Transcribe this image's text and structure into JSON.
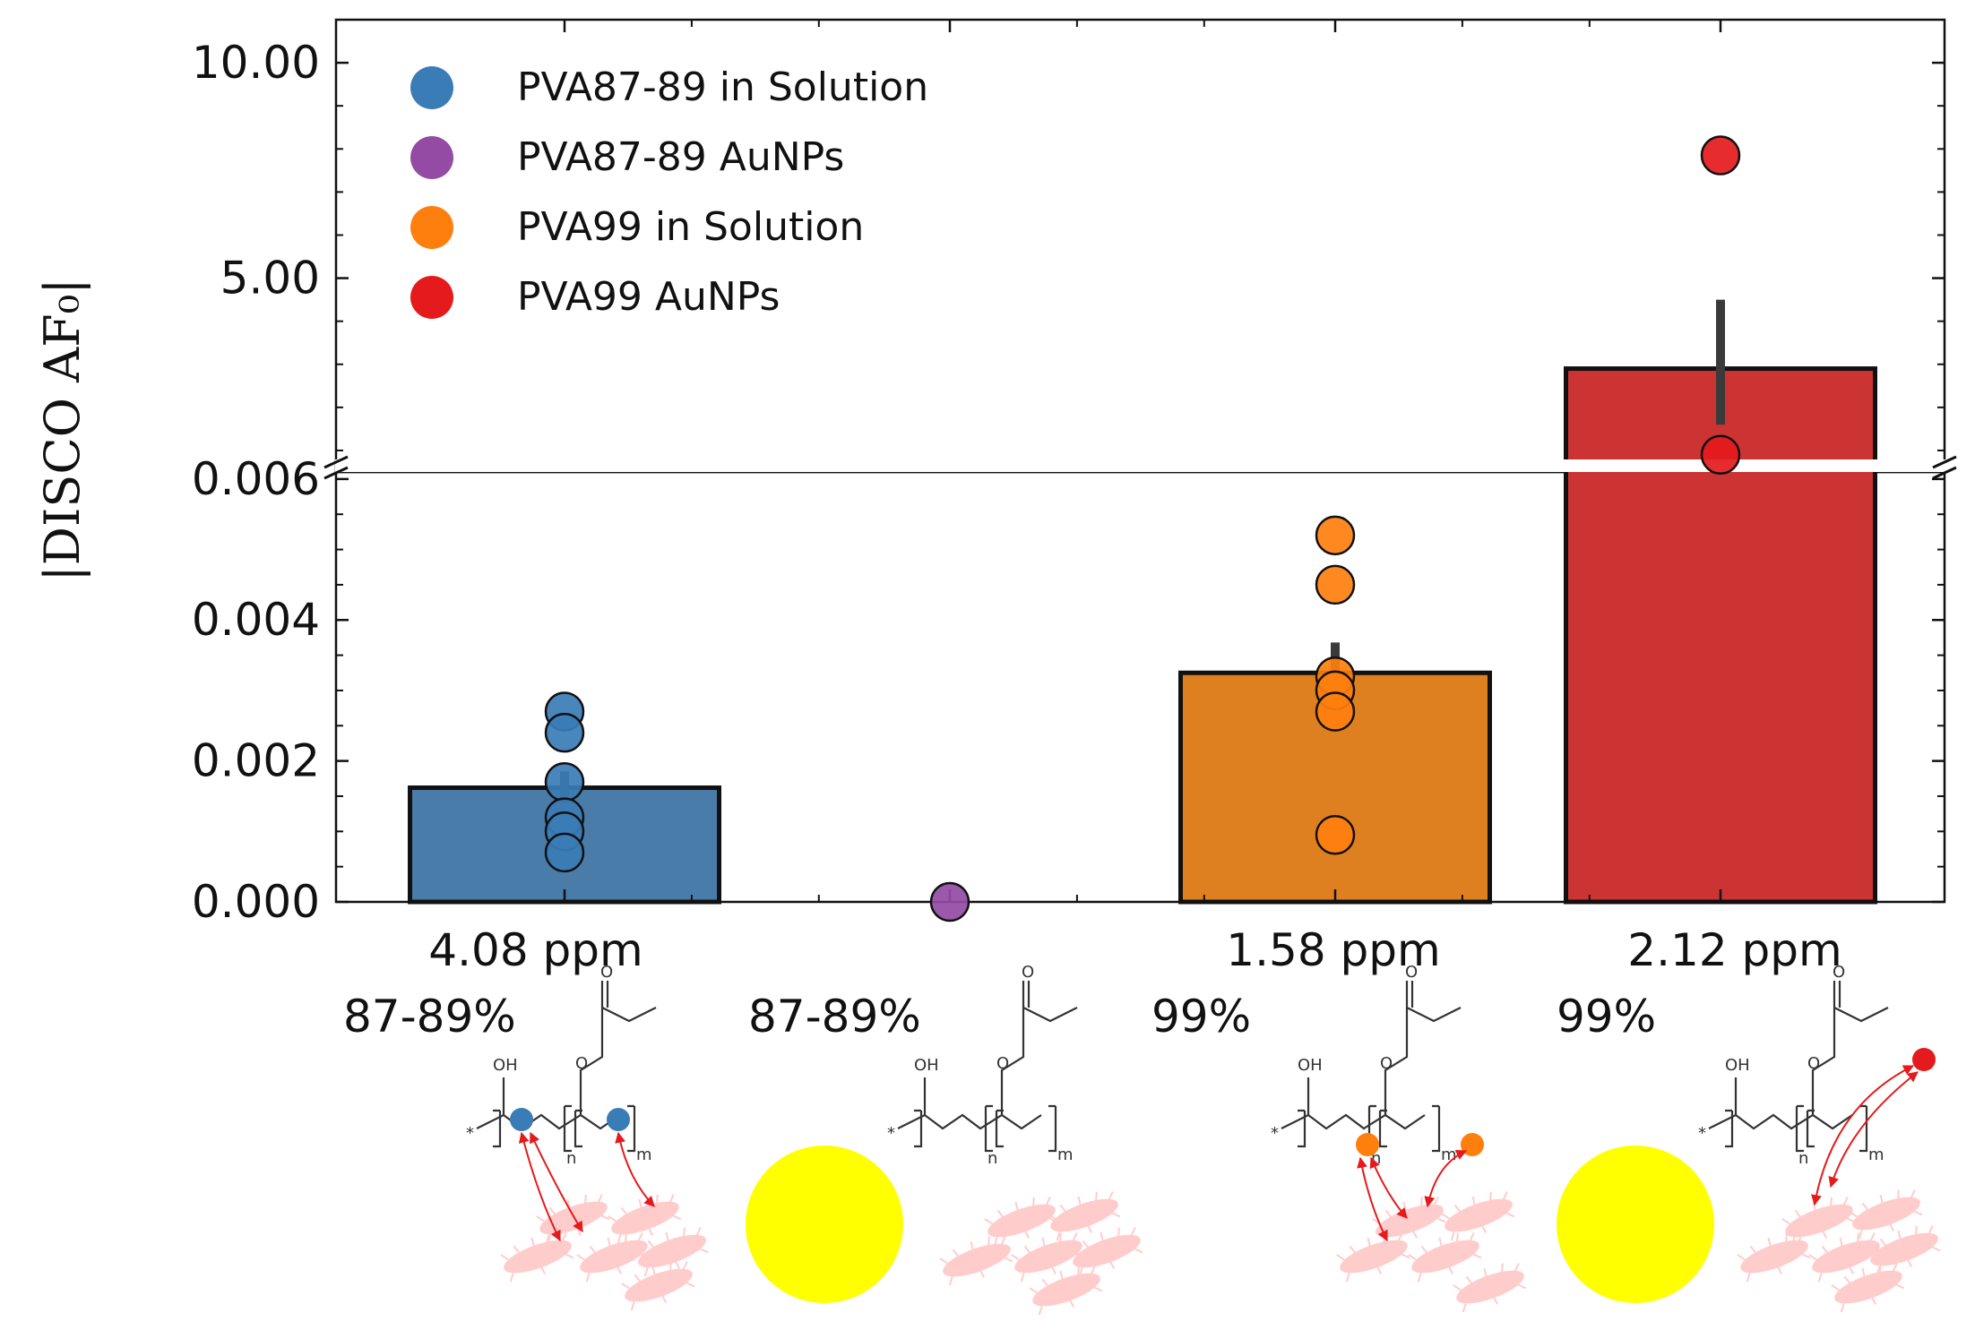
{
  "chart_data": {
    "type": "bar",
    "ylabel": "|DISCO AF₀|",
    "axis_break": true,
    "lower_axis": {
      "ylim": [
        0,
        0.0061
      ],
      "ticks": [
        "0.000",
        "0.002",
        "0.004",
        "0.006"
      ]
    },
    "upper_axis": {
      "ylim": [
        0.5,
        11
      ],
      "ticks": [
        "5.00",
        "10.00"
      ]
    },
    "categories": [
      "4.08 ppm",
      "",
      "1.58 ppm",
      "2.12 ppm"
    ],
    "purity_labels": [
      "87-89%",
      "87-89%",
      "99%",
      "99%"
    ],
    "legend_position": "top-left",
    "series": [
      {
        "name": "PVA87-89 in Solution",
        "color": "#3a7cb6",
        "bar_color": "#4a7caa",
        "bar": 0.00162,
        "error": [
          0.00142,
          0.00185
        ],
        "points": [
          0.0027,
          0.0024,
          0.0017,
          0.0012,
          0.001,
          0.0007
        ]
      },
      {
        "name": "PVA87-89 AuNPs",
        "color": "#944ba4",
        "bar": 0,
        "points": [
          0
        ]
      },
      {
        "name": "PVA99 in Solution",
        "color": "#ff7f0e",
        "bar_color": "#df8020",
        "bar": 0.00325,
        "error": [
          0.00283,
          0.00368
        ],
        "points": [
          0.0052,
          0.0045,
          0.0032,
          0.003,
          0.0027,
          0.00095
        ]
      },
      {
        "name": "PVA99 AuNPs",
        "color": "#e41a1c",
        "bar_color": "#cc3333",
        "bar": 2.9,
        "error": [
          1.6,
          4.5
        ],
        "points": [
          7.85,
          0.9
        ]
      }
    ]
  },
  "scheme": {
    "hydroxyl_label": "OH",
    "carbonyl_label": "O",
    "ester_label": "O",
    "repeat_n": "n",
    "repeat_m": "m",
    "end_group": "*"
  }
}
